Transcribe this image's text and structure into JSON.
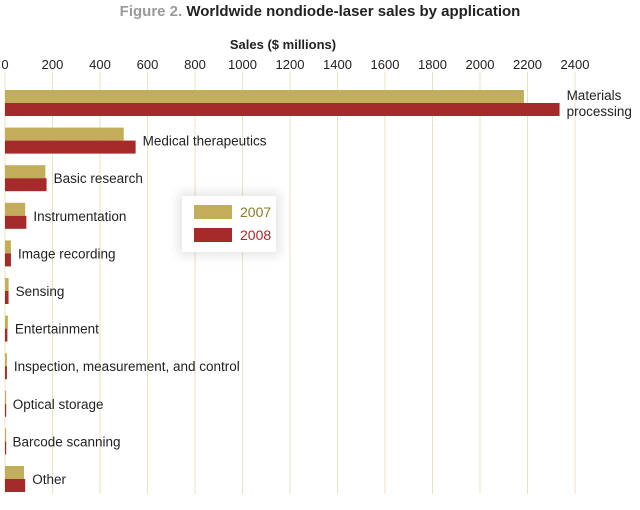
{
  "figure": {
    "label": "Figure 2.",
    "title": "Worldwide nondiode-laser sales by application"
  },
  "colors": {
    "2007": "#c2ad5a",
    "2008": "#a52a2a",
    "grid": "#e8e2c4"
  },
  "chart_data": {
    "type": "bar",
    "orientation": "horizontal",
    "title": "Worldwide nondiode-laser sales by application",
    "xlabel": "Sales ($ millions)",
    "xlim": [
      0,
      2400
    ],
    "xticks": [
      0,
      200,
      400,
      600,
      800,
      1000,
      1200,
      1400,
      1600,
      1800,
      2000,
      2200,
      2400
    ],
    "grid": true,
    "legend_position": "center",
    "categories": [
      [
        "Materials",
        "processing"
      ],
      [
        "Medical therapeutics"
      ],
      [
        "Basic research"
      ],
      [
        "Instrumentation"
      ],
      [
        "Image recording"
      ],
      [
        "Sensing"
      ],
      [
        "Entertainment"
      ],
      [
        "Inspection, measurement, and control"
      ],
      [
        "Optical storage"
      ],
      [
        "Barcode scanning"
      ],
      [
        "Other"
      ]
    ],
    "series": [
      {
        "name": "2007",
        "values": [
          2185,
          500,
          170,
          85,
          25,
          15,
          12,
          8,
          3,
          2,
          80
        ]
      },
      {
        "name": "2008",
        "values": [
          2335,
          550,
          175,
          90,
          25,
          15,
          10,
          8,
          2,
          1,
          85
        ]
      }
    ]
  }
}
